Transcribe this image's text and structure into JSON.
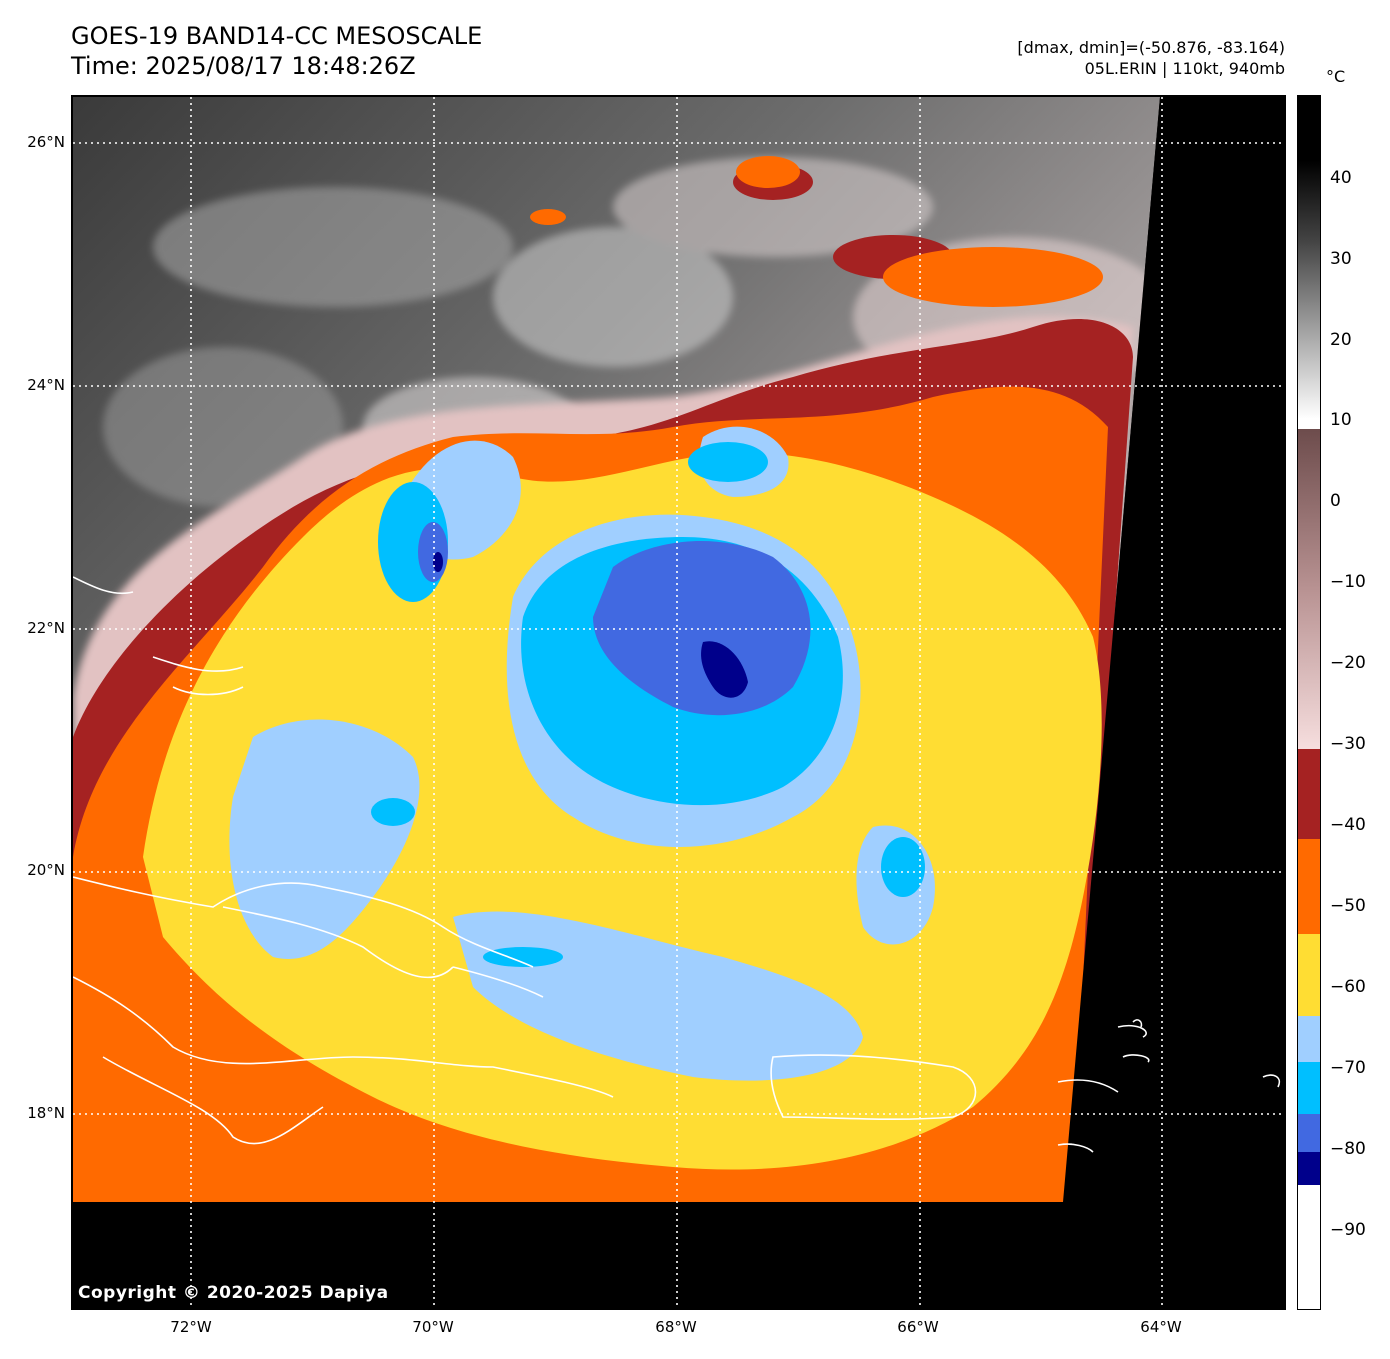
{
  "header": {
    "title_line1": "GOES-19 BAND14-CC MESOSCALE",
    "title_line2": "Time: 2025/08/17 18:48:26Z",
    "stats": "[dmax, dmin]=(-50.876, -83.164)",
    "storm": "05L.ERIN | 110kt, 940mb"
  },
  "colorbar": {
    "unit": "°C",
    "ticks": [
      "40",
      "30",
      "20",
      "10",
      "0",
      "−10",
      "−20",
      "−30",
      "−40",
      "−50",
      "−60",
      "−70",
      "−80",
      "−90"
    ]
  },
  "axes": {
    "lat_labels": [
      "26°N",
      "24°N",
      "22°N",
      "20°N",
      "18°N"
    ],
    "lon_labels": [
      "72°W",
      "70°W",
      "68°W",
      "66°W",
      "64°W"
    ]
  },
  "copyright": "Copyright © 2020-2025 Dapiya",
  "palette": {
    "dark_blue": "#00008b",
    "royal_blue": "#4169e1",
    "deep_sky": "#00bfff",
    "light_blue": "#a0cfff",
    "yellow": "#ffdd33",
    "orange": "#ff6a00",
    "brown_red": "#a52222",
    "pink": "#f3d6d6",
    "black": "#000000"
  }
}
